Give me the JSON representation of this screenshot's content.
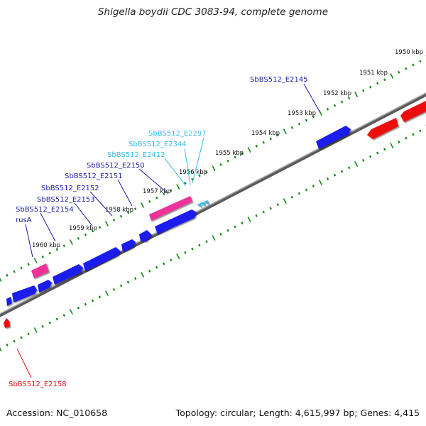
{
  "title": "Shigella boydii CDC 3083-94, complete genome",
  "footer": {
    "accession": "Accession: NC_010658",
    "summary": "Topology: circular; Length: 4,615,997 bp; Genes: 4,415"
  },
  "ticks": [
    "1950 kbp",
    "1951 kbp",
    "1952 kbp",
    "1953 kbp",
    "1954 kbp",
    "1955 kbp",
    "1956 kbp",
    "1957 kbp",
    "1958 kbp",
    "1959 kbp",
    "1960 kbp"
  ],
  "genes": [
    {
      "label": "SbBS512_E2145",
      "color": "#1a1aa8"
    },
    {
      "label": "SbBS512_E2297",
      "color": "#33bbee"
    },
    {
      "label": "SbBS512_E2344",
      "color": "#33bbee"
    },
    {
      "label": "SbBS512_E2412",
      "color": "#33bbee"
    },
    {
      "label": "SbBS512_E2150",
      "color": "#1a1aa8"
    },
    {
      "label": "SbBS512_E2151",
      "color": "#1a1aa8"
    },
    {
      "label": "SbBS512_E2152",
      "color": "#1a1aa8"
    },
    {
      "label": "SbBS512_E2153",
      "color": "#1a1aa8"
    },
    {
      "label": "SbBS512_E2154",
      "color": "#1a1aa8"
    },
    {
      "label": "rusA",
      "color": "#1a1aa8"
    },
    {
      "label": "SbBS512_E2158",
      "color": "#dd1111"
    }
  ],
  "colors": {
    "cds_forward": "#1a1aee",
    "cds_reverse": "#ee1111",
    "rna": "#ee3399",
    "repeat": "#33bbee",
    "backbone": "#888888",
    "tick": "#118811"
  }
}
